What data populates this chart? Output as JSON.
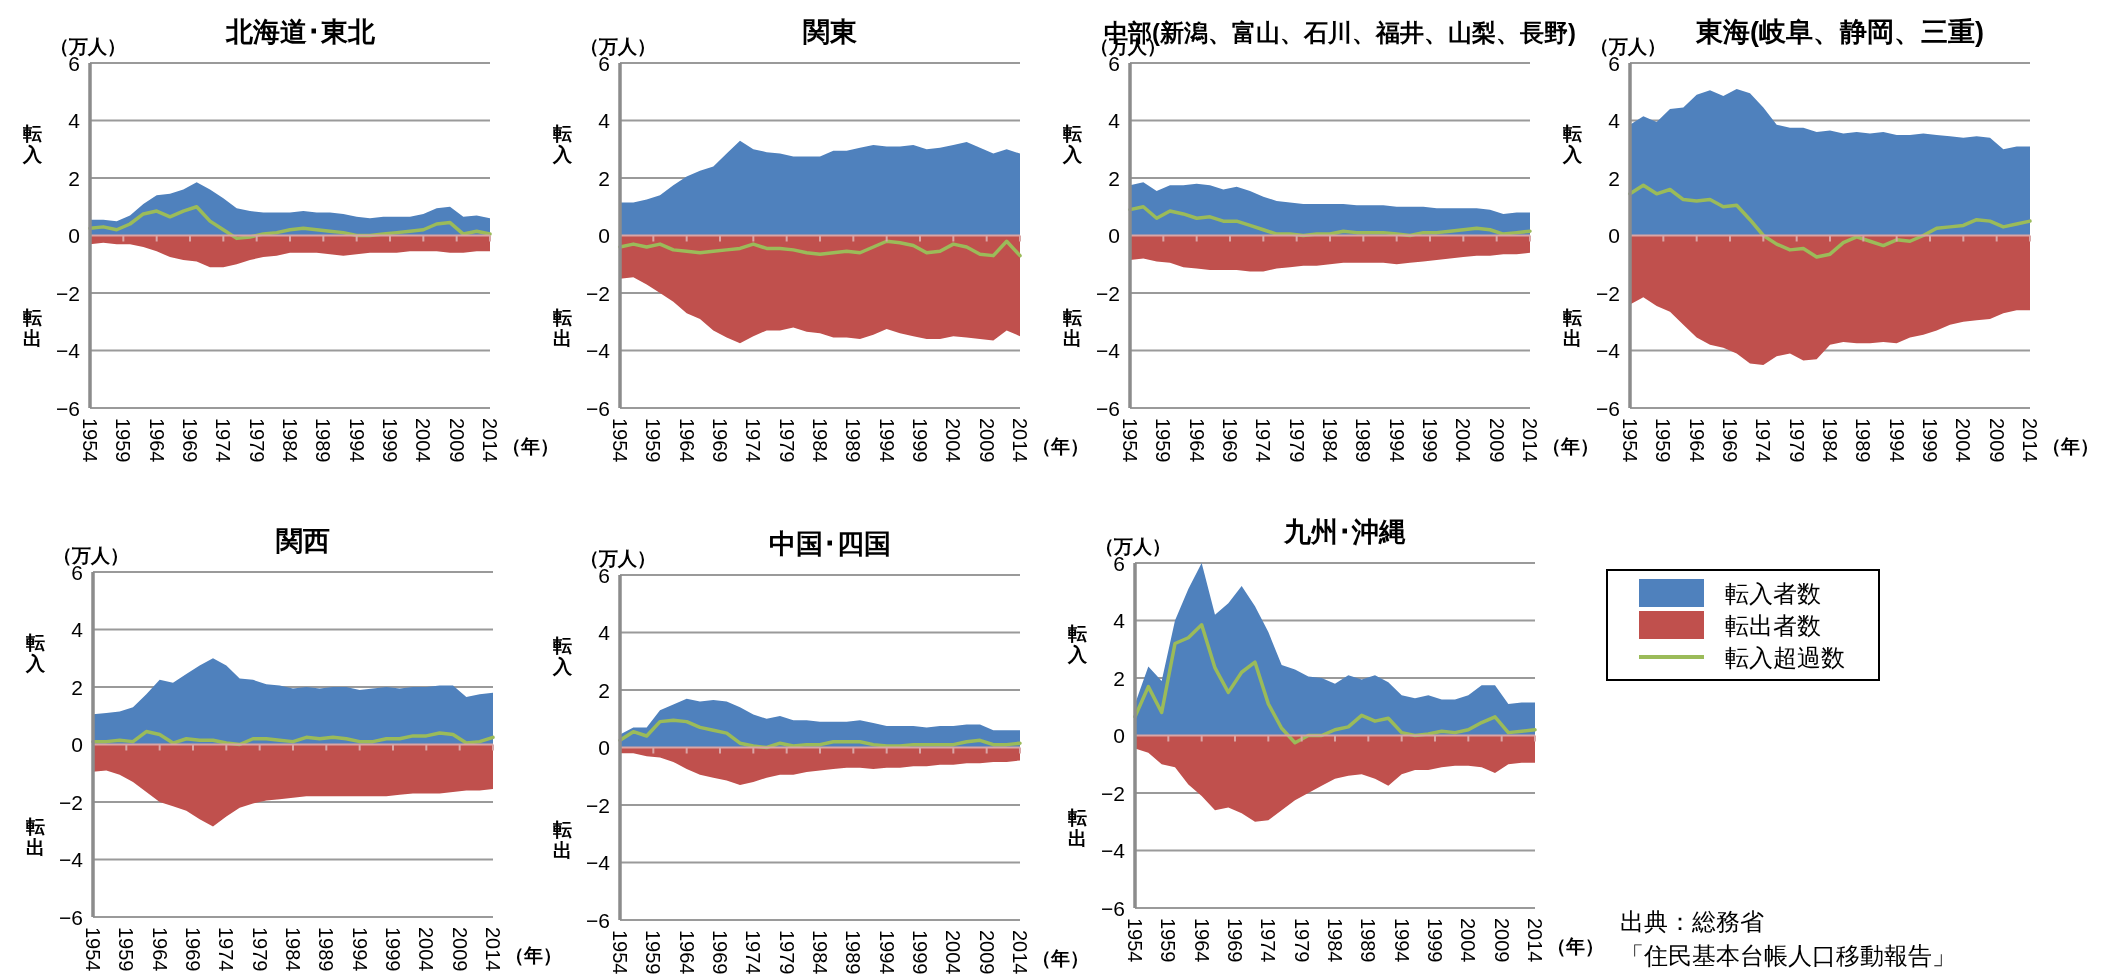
{
  "chart_data": [
    {
      "type": "area",
      "title": "北海道･東北",
      "ref_lines": [
        {
          "axis": "y",
          "value": 0,
          "color": "#d9a5a5"
        }
      ],
      "ylabel": "（万人）",
      "xlabel": "（年）",
      "annotations": [
        "転入",
        "転出"
      ],
      "xlim": [
        1954,
        2014
      ],
      "ylim": [
        -6,
        6
      ],
      "xticks": [
        1954,
        1959,
        1964,
        1969,
        1974,
        1979,
        1984,
        1989,
        1994,
        1999,
        2004,
        2009,
        2014
      ],
      "yticks": [
        -6,
        -4,
        -2,
        0,
        2,
        4,
        6
      ],
      "grid": "y",
      "x": [
        1954,
        1956,
        1958,
        1960,
        1962,
        1964,
        1966,
        1968,
        1970,
        1972,
        1974,
        1976,
        1978,
        1980,
        1982,
        1984,
        1986,
        1988,
        1990,
        1992,
        1994,
        1996,
        1998,
        2000,
        2002,
        2004,
        2006,
        2008,
        2010,
        2012,
        2014
      ],
      "series": [
        {
          "color": "#4f81bd",
          "values": [
            0.55,
            0.55,
            0.5,
            0.7,
            1.1,
            1.4,
            1.45,
            1.6,
            1.85,
            1.6,
            1.3,
            0.95,
            0.85,
            0.8,
            0.8,
            0.8,
            0.85,
            0.8,
            0.8,
            0.75,
            0.65,
            0.6,
            0.65,
            0.65,
            0.65,
            0.75,
            0.95,
            1.0,
            0.65,
            0.7,
            0.6
          ]
        },
        {
          "color": "#c0504d",
          "values": [
            -0.3,
            -0.25,
            -0.3,
            -0.3,
            -0.4,
            -0.55,
            -0.75,
            -0.85,
            -0.9,
            -1.1,
            -1.1,
            -1.0,
            -0.85,
            -0.75,
            -0.7,
            -0.6,
            -0.6,
            -0.6,
            -0.65,
            -0.7,
            -0.65,
            -0.6,
            -0.6,
            -0.6,
            -0.55,
            -0.55,
            -0.55,
            -0.6,
            -0.6,
            -0.55,
            -0.55
          ]
        },
        {
          "type": "line",
          "color": "#9bbb59",
          "values": [
            0.25,
            0.3,
            0.2,
            0.4,
            0.75,
            0.85,
            0.65,
            0.85,
            1.0,
            0.5,
            0.2,
            -0.1,
            -0.05,
            0.05,
            0.1,
            0.2,
            0.25,
            0.2,
            0.15,
            0.1,
            0.0,
            0.0,
            0.05,
            0.1,
            0.15,
            0.2,
            0.4,
            0.45,
            0.05,
            0.15,
            0.05
          ]
        }
      ]
    },
    {
      "type": "area",
      "title": "関東",
      "ref_lines": [
        {
          "axis": "y",
          "value": 0,
          "color": "#d9a5a5"
        }
      ],
      "ylabel": "（万人）",
      "xlabel": "（年）",
      "annotations": [
        "転入",
        "転出"
      ],
      "xlim": [
        1954,
        2014
      ],
      "ylim": [
        -6,
        6
      ],
      "xticks": [
        1954,
        1959,
        1964,
        1969,
        1974,
        1979,
        1984,
        1989,
        1994,
        1999,
        2004,
        2009,
        2014
      ],
      "yticks": [
        -6,
        -4,
        -2,
        0,
        2,
        4,
        6
      ],
      "grid": "y",
      "x": [
        1954,
        1956,
        1958,
        1960,
        1962,
        1964,
        1966,
        1968,
        1970,
        1972,
        1974,
        1976,
        1978,
        1980,
        1982,
        1984,
        1986,
        1988,
        1990,
        1992,
        1994,
        1996,
        1998,
        2000,
        2002,
        2004,
        2006,
        2008,
        2010,
        2012,
        2014
      ],
      "series": [
        {
          "color": "#4f81bd",
          "values": [
            1.15,
            1.15,
            1.25,
            1.4,
            1.75,
            2.05,
            2.25,
            2.4,
            2.85,
            3.3,
            3.0,
            2.9,
            2.85,
            2.75,
            2.75,
            2.75,
            2.95,
            2.95,
            3.05,
            3.15,
            3.1,
            3.1,
            3.15,
            3.0,
            3.05,
            3.15,
            3.25,
            3.05,
            2.85,
            3.0,
            2.85
          ]
        },
        {
          "color": "#c0504d",
          "values": [
            -1.5,
            -1.45,
            -1.7,
            -2.0,
            -2.3,
            -2.7,
            -2.9,
            -3.3,
            -3.55,
            -3.75,
            -3.5,
            -3.3,
            -3.3,
            -3.2,
            -3.35,
            -3.4,
            -3.55,
            -3.55,
            -3.6,
            -3.45,
            -3.25,
            -3.4,
            -3.5,
            -3.6,
            -3.6,
            -3.5,
            -3.55,
            -3.6,
            -3.65,
            -3.3,
            -3.5
          ]
        },
        {
          "type": "line",
          "color": "#9bbb59",
          "values": [
            -0.4,
            -0.3,
            -0.4,
            -0.3,
            -0.5,
            -0.55,
            -0.6,
            -0.55,
            -0.5,
            -0.45,
            -0.3,
            -0.45,
            -0.45,
            -0.5,
            -0.6,
            -0.65,
            -0.6,
            -0.55,
            -0.6,
            -0.4,
            -0.2,
            -0.25,
            -0.35,
            -0.6,
            -0.55,
            -0.3,
            -0.4,
            -0.65,
            -0.7,
            -0.2,
            -0.7
          ]
        }
      ]
    },
    {
      "type": "area",
      "ref_lines": [
        {
          "axis": "y",
          "value": 0,
          "color": "#d9a5a5"
        }
      ],
      "title": "中部(新潟、富山、石川、福井、山梨、長野)",
      "ylabel": "（万人）",
      "xlabel": "（年）",
      "annotations": [
        "転入",
        "転出"
      ],
      "xlim": [
        1954,
        2014
      ],
      "ylim": [
        -6,
        6
      ],
      "xticks": [
        1954,
        1959,
        1964,
        1969,
        1974,
        1979,
        1984,
        1989,
        1994,
        1999,
        2004,
        2009,
        2014
      ],
      "yticks": [
        -6,
        -4,
        -2,
        0,
        2,
        4,
        6
      ],
      "grid": "y",
      "x": [
        1954,
        1956,
        1958,
        1960,
        1962,
        1964,
        1966,
        1968,
        1970,
        1972,
        1974,
        1976,
        1978,
        1980,
        1982,
        1984,
        1986,
        1988,
        1990,
        1992,
        1994,
        1996,
        1998,
        2000,
        2002,
        2004,
        2006,
        2008,
        2010,
        2012,
        2014
      ],
      "series": [
        {
          "color": "#4f81bd",
          "values": [
            1.75,
            1.85,
            1.55,
            1.75,
            1.75,
            1.8,
            1.75,
            1.6,
            1.7,
            1.55,
            1.35,
            1.2,
            1.15,
            1.1,
            1.1,
            1.1,
            1.1,
            1.05,
            1.05,
            1.05,
            1.0,
            1.0,
            1.0,
            0.95,
            0.95,
            0.95,
            0.95,
            0.9,
            0.75,
            0.8,
            0.8
          ]
        },
        {
          "color": "#c0504d",
          "values": [
            -0.85,
            -0.8,
            -0.9,
            -0.95,
            -1.1,
            -1.15,
            -1.2,
            -1.2,
            -1.2,
            -1.25,
            -1.25,
            -1.15,
            -1.1,
            -1.05,
            -1.05,
            -1.0,
            -0.95,
            -0.95,
            -0.95,
            -0.95,
            -1.0,
            -0.95,
            -0.9,
            -0.85,
            -0.8,
            -0.75,
            -0.7,
            -0.7,
            -0.65,
            -0.65,
            -0.6
          ]
        },
        {
          "type": "line",
          "color": "#9bbb59",
          "values": [
            0.9,
            1.0,
            0.6,
            0.85,
            0.75,
            0.6,
            0.65,
            0.5,
            0.5,
            0.35,
            0.2,
            0.05,
            0.05,
            0.0,
            0.05,
            0.05,
            0.15,
            0.1,
            0.1,
            0.1,
            0.05,
            0.0,
            0.1,
            0.1,
            0.15,
            0.2,
            0.25,
            0.2,
            0.05,
            0.1,
            0.15
          ]
        }
      ]
    },
    {
      "type": "area",
      "ref_lines": [
        {
          "axis": "y",
          "value": 0,
          "color": "#d9a5a5"
        }
      ],
      "title": "東海(岐阜、静岡、三重)",
      "ylabel": "（万人）",
      "xlabel": "（年）",
      "annotations": [
        "転入",
        "転出"
      ],
      "xlim": [
        1954,
        2014
      ],
      "ylim": [
        -6,
        6
      ],
      "xticks": [
        1954,
        1959,
        1964,
        1969,
        1974,
        1979,
        1984,
        1989,
        1994,
        1999,
        2004,
        2009,
        2014
      ],
      "yticks": [
        -6,
        -4,
        -2,
        0,
        2,
        4,
        6
      ],
      "grid": "y",
      "x": [
        1954,
        1956,
        1958,
        1960,
        1962,
        1964,
        1966,
        1968,
        1970,
        1972,
        1974,
        1976,
        1978,
        1980,
        1982,
        1984,
        1986,
        1988,
        1990,
        1992,
        1994,
        1996,
        1998,
        2000,
        2002,
        2004,
        2006,
        2008,
        2010,
        2012,
        2014
      ],
      "series": [
        {
          "color": "#4f81bd",
          "values": [
            3.85,
            4.15,
            3.95,
            4.4,
            4.45,
            4.9,
            5.05,
            4.85,
            5.1,
            4.95,
            4.45,
            3.85,
            3.75,
            3.75,
            3.6,
            3.65,
            3.55,
            3.6,
            3.55,
            3.6,
            3.5,
            3.5,
            3.55,
            3.5,
            3.45,
            3.4,
            3.45,
            3.4,
            3.0,
            3.1,
            3.1
          ]
        },
        {
          "color": "#c0504d",
          "values": [
            -2.4,
            -2.15,
            -2.45,
            -2.65,
            -3.1,
            -3.55,
            -3.8,
            -3.9,
            -4.1,
            -4.45,
            -4.5,
            -4.2,
            -4.1,
            -4.35,
            -4.3,
            -3.8,
            -3.7,
            -3.75,
            -3.75,
            -3.7,
            -3.75,
            -3.55,
            -3.45,
            -3.3,
            -3.1,
            -3.0,
            -2.95,
            -2.9,
            -2.7,
            -2.6,
            -2.6
          ]
        },
        {
          "type": "line",
          "color": "#9bbb59",
          "values": [
            1.45,
            1.75,
            1.45,
            1.6,
            1.25,
            1.2,
            1.25,
            1.0,
            1.05,
            0.55,
            0.0,
            -0.3,
            -0.5,
            -0.45,
            -0.75,
            -0.65,
            -0.25,
            -0.05,
            -0.2,
            -0.35,
            -0.15,
            -0.2,
            0.0,
            0.25,
            0.3,
            0.35,
            0.55,
            0.5,
            0.3,
            0.4,
            0.5
          ]
        }
      ]
    },
    {
      "type": "area",
      "title": "関西",
      "ref_lines": [
        {
          "axis": "y",
          "value": 0,
          "color": "#d9a5a5"
        }
      ],
      "ylabel": "（万人）",
      "xlabel": "（年）",
      "annotations": [
        "転入",
        "転出"
      ],
      "xlim": [
        1954,
        2014
      ],
      "ylim": [
        -6,
        6
      ],
      "xticks": [
        1954,
        1959,
        1964,
        1969,
        1974,
        1979,
        1984,
        1989,
        1994,
        1999,
        2004,
        2009,
        2014
      ],
      "yticks": [
        -6,
        -4,
        -2,
        0,
        2,
        4,
        6
      ],
      "grid": "y",
      "x": [
        1954,
        1956,
        1958,
        1960,
        1962,
        1964,
        1966,
        1968,
        1970,
        1972,
        1974,
        1976,
        1978,
        1980,
        1982,
        1984,
        1986,
        1988,
        1990,
        1992,
        1994,
        1996,
        1998,
        2000,
        2002,
        2004,
        2006,
        2008,
        2010,
        2012,
        2014
      ],
      "series": [
        {
          "color": "#4f81bd",
          "values": [
            1.05,
            1.1,
            1.15,
            1.3,
            1.75,
            2.25,
            2.15,
            2.45,
            2.75,
            3.0,
            2.75,
            2.3,
            2.25,
            2.1,
            2.05,
            1.95,
            2.0,
            1.95,
            2.0,
            2.0,
            1.9,
            1.95,
            2.0,
            1.95,
            2.0,
            2.0,
            2.05,
            2.05,
            1.65,
            1.75,
            1.8
          ]
        },
        {
          "color": "#c0504d",
          "values": [
            -0.95,
            -0.9,
            -1.05,
            -1.3,
            -1.65,
            -2.0,
            -2.15,
            -2.3,
            -2.6,
            -2.85,
            -2.5,
            -2.2,
            -2.05,
            -1.95,
            -1.9,
            -1.85,
            -1.8,
            -1.8,
            -1.8,
            -1.8,
            -1.8,
            -1.8,
            -1.8,
            -1.75,
            -1.7,
            -1.7,
            -1.7,
            -1.65,
            -1.6,
            -1.6,
            -1.55
          ]
        },
        {
          "type": "line",
          "color": "#9bbb59",
          "values": [
            0.1,
            0.1,
            0.15,
            0.1,
            0.45,
            0.35,
            0.05,
            0.2,
            0.15,
            0.15,
            0.05,
            0.0,
            0.2,
            0.2,
            0.15,
            0.1,
            0.25,
            0.2,
            0.25,
            0.2,
            0.1,
            0.1,
            0.2,
            0.2,
            0.3,
            0.3,
            0.4,
            0.35,
            0.05,
            0.1,
            0.25
          ]
        }
      ]
    },
    {
      "type": "area",
      "title": "中国･四国",
      "ref_lines": [
        {
          "axis": "y",
          "value": 0,
          "color": "#d9a5a5"
        }
      ],
      "ylabel": "（万人）",
      "xlabel": "（年）",
      "annotations": [
        "転入",
        "転出"
      ],
      "xlim": [
        1954,
        2014
      ],
      "ylim": [
        -6,
        6
      ],
      "xticks": [
        1954,
        1959,
        1964,
        1969,
        1974,
        1979,
        1984,
        1989,
        1994,
        1999,
        2004,
        2009,
        2014
      ],
      "yticks": [
        -6,
        -4,
        -2,
        0,
        2,
        4,
        6
      ],
      "grid": "y",
      "x": [
        1954,
        1956,
        1958,
        1960,
        1962,
        1964,
        1966,
        1968,
        1970,
        1972,
        1974,
        1976,
        1978,
        1980,
        1982,
        1984,
        1986,
        1988,
        1990,
        1992,
        1994,
        1996,
        1998,
        2000,
        2002,
        2004,
        2006,
        2008,
        2010,
        2012,
        2014
      ],
      "series": [
        {
          "color": "#4f81bd",
          "values": [
            0.45,
            0.7,
            0.7,
            1.3,
            1.5,
            1.7,
            1.6,
            1.65,
            1.6,
            1.4,
            1.15,
            1.0,
            1.1,
            0.95,
            0.95,
            0.9,
            0.9,
            0.9,
            0.95,
            0.85,
            0.75,
            0.75,
            0.75,
            0.7,
            0.75,
            0.75,
            0.8,
            0.8,
            0.6,
            0.6,
            0.6
          ]
        },
        {
          "color": "#c0504d",
          "values": [
            -0.2,
            -0.2,
            -0.3,
            -0.35,
            -0.5,
            -0.75,
            -0.95,
            -1.05,
            -1.15,
            -1.3,
            -1.2,
            -1.05,
            -0.95,
            -0.95,
            -0.85,
            -0.8,
            -0.75,
            -0.7,
            -0.7,
            -0.75,
            -0.7,
            -0.7,
            -0.65,
            -0.65,
            -0.6,
            -0.6,
            -0.55,
            -0.55,
            -0.5,
            -0.5,
            -0.45
          ]
        },
        {
          "type": "line",
          "color": "#9bbb59",
          "values": [
            0.25,
            0.55,
            0.4,
            0.9,
            0.95,
            0.9,
            0.7,
            0.6,
            0.5,
            0.15,
            0.05,
            0.0,
            0.15,
            0.05,
            0.1,
            0.1,
            0.2,
            0.2,
            0.2,
            0.1,
            0.05,
            0.05,
            0.1,
            0.1,
            0.1,
            0.1,
            0.2,
            0.25,
            0.1,
            0.1,
            0.15
          ]
        }
      ]
    },
    {
      "type": "area",
      "title": "九州･沖縄",
      "ref_lines": [
        {
          "axis": "y",
          "value": 0,
          "color": "#d9a5a5"
        }
      ],
      "ylabel": "（万人）",
      "xlabel": "（年）",
      "annotations": [
        "転入",
        "転出",
        "出典：総務省",
        "「住民基本台帳人口移動報告」"
      ],
      "xlim": [
        1954,
        2014
      ],
      "ylim": [
        -6,
        6
      ],
      "xticks": [
        1954,
        1959,
        1964,
        1969,
        1974,
        1979,
        1984,
        1989,
        1994,
        1999,
        2004,
        2009,
        2014
      ],
      "yticks": [
        -6,
        -4,
        -2,
        0,
        2,
        4,
        6
      ],
      "grid": "y",
      "legend": "right",
      "x": [
        1954,
        1956,
        1958,
        1960,
        1962,
        1964,
        1966,
        1968,
        1970,
        1972,
        1974,
        1976,
        1978,
        1980,
        1982,
        1984,
        1986,
        1988,
        1990,
        1992,
        1994,
        1996,
        1998,
        2000,
        2002,
        2004,
        2006,
        2008,
        2010,
        2012,
        2014
      ],
      "series": [
        {
          "name": "転入者数",
          "color": "#4f81bd",
          "values": [
            1.1,
            2.4,
            1.9,
            4.0,
            5.1,
            6.0,
            4.2,
            4.6,
            5.2,
            4.5,
            3.6,
            2.45,
            2.3,
            2.05,
            2.0,
            1.8,
            2.1,
            1.95,
            2.1,
            1.85,
            1.4,
            1.3,
            1.4,
            1.25,
            1.25,
            1.4,
            1.75,
            1.75,
            1.1,
            1.15,
            1.15
          ]
        },
        {
          "name": "転出者数",
          "color": "#c0504d",
          "values": [
            -0.45,
            -0.6,
            -1.0,
            -1.1,
            -1.7,
            -2.1,
            -2.6,
            -2.5,
            -2.7,
            -3.0,
            -2.95,
            -2.6,
            -2.25,
            -2.0,
            -1.75,
            -1.5,
            -1.4,
            -1.35,
            -1.5,
            -1.75,
            -1.35,
            -1.2,
            -1.2,
            -1.1,
            -1.05,
            -1.05,
            -1.1,
            -1.3,
            -1.0,
            -0.95,
            -0.95
          ]
        },
        {
          "name": "転入超過数",
          "type": "line",
          "color": "#9bbb59",
          "values": [
            0.65,
            1.7,
            0.8,
            3.2,
            3.4,
            3.85,
            2.35,
            1.5,
            2.2,
            2.55,
            1.1,
            0.25,
            -0.25,
            0.0,
            0.0,
            0.2,
            0.3,
            0.7,
            0.5,
            0.6,
            0.1,
            0.0,
            0.05,
            0.15,
            0.1,
            0.2,
            0.45,
            0.65,
            0.1,
            0.15,
            0.2
          ]
        }
      ]
    }
  ]
}
